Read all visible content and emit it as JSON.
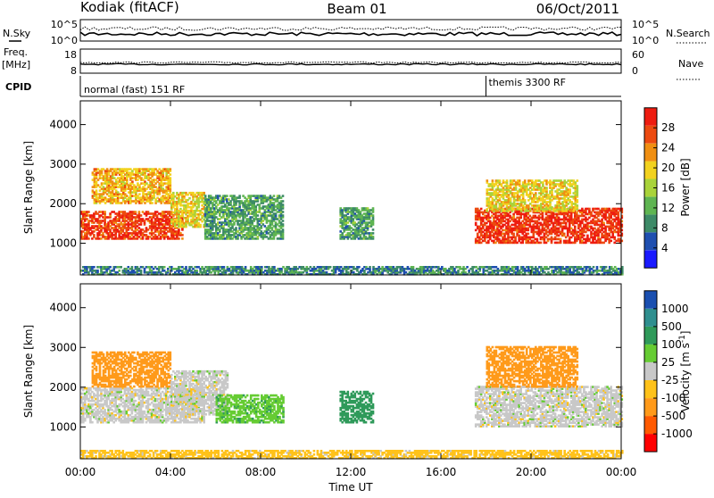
{
  "header": {
    "station": "Kodiak (fitACF)",
    "beam": "Beam 01",
    "date": "06/Oct/2011"
  },
  "strips": {
    "nsky_label": "N.Sky",
    "nsearch_label": "N.Search",
    "noise_ticks": [
      "10^5",
      "10^0"
    ],
    "freq_label": "Freq.",
    "freq_unit": "[MHz]",
    "freq_ticks": [
      "18",
      "8"
    ],
    "nave_label": "Nave",
    "nave_ticks": [
      "60",
      "0"
    ],
    "cpid_label": "CPID",
    "cpid_modes": [
      {
        "label": "normal (fast) 151 RF",
        "start_hour": 0
      },
      {
        "label": "themis 3300 RF",
        "start_hour": 18.0
      }
    ]
  },
  "axes": {
    "xlabel": "Time UT",
    "x_ticks": [
      "00:00",
      "04:00",
      "08:00",
      "12:00",
      "16:00",
      "20:00",
      "00:00"
    ],
    "xlim_hours": [
      0,
      24
    ],
    "ylabel": "Slant Range [km]",
    "y_ticks": [
      "1000",
      "2000",
      "3000",
      "4000"
    ],
    "ylim_km": [
      200,
      4600
    ]
  },
  "colors": {
    "power_scale": [
      "#1a1aff",
      "#1f4fb0",
      "#3d8a67",
      "#5fb552",
      "#a9d33a",
      "#f2d21f",
      "#f08f12",
      "#ec4a10",
      "#ee1c10"
    ],
    "velocity_scale": [
      "#ff0000",
      "#ff5a00",
      "#ff9a1a",
      "#ffc21a",
      "#c8c8c8",
      "#66cc33",
      "#2f9a5a",
      "#2f8f8f",
      "#1a4fb0"
    ]
  },
  "chart_data": [
    {
      "type": "heatmap",
      "title": "",
      "quantity": "Power",
      "colorbar_label": "Power [dB]",
      "colorbar_ticks": [
        "4",
        "8",
        "12",
        "16",
        "20",
        "24",
        "28"
      ],
      "clim": [
        0,
        30
      ],
      "xlabel": "Time UT",
      "ylabel": "Slant Range [km]",
      "xlim_hours": [
        0,
        24
      ],
      "ylim_km": [
        200,
        4600
      ],
      "regions": [
        {
          "t_start": 0.0,
          "t_end": 4.5,
          "r_low": 1100,
          "r_high": 1800,
          "value_db": 26
        },
        {
          "t_start": 0.5,
          "t_end": 4.0,
          "r_low": 2000,
          "r_high": 2900,
          "value_db": 20
        },
        {
          "t_start": 4.0,
          "t_end": 5.5,
          "r_low": 1400,
          "r_high": 2300,
          "value_db": 18
        },
        {
          "t_start": 5.5,
          "t_end": 9.0,
          "r_low": 1100,
          "r_high": 2200,
          "value_db": 10
        },
        {
          "t_start": 11.5,
          "t_end": 13.0,
          "r_low": 1100,
          "r_high": 1900,
          "value_db": 10
        },
        {
          "t_start": 17.5,
          "t_end": 24.0,
          "r_low": 1000,
          "r_high": 1900,
          "value_db": 27
        },
        {
          "t_start": 18.0,
          "t_end": 22.0,
          "r_low": 1800,
          "r_high": 2600,
          "value_db": 18
        },
        {
          "t_start": 0.0,
          "t_end": 24.0,
          "r_low": 200,
          "r_high": 400,
          "value_db": 8
        }
      ]
    },
    {
      "type": "heatmap",
      "title": "",
      "quantity": "Velocity",
      "colorbar_label": "Velocity [m s^-1]",
      "colorbar_ticks": [
        "-1000",
        "-500",
        "-100",
        "-25",
        "25",
        "100",
        "500",
        "1000"
      ],
      "clim": [
        -1000,
        1000
      ],
      "xlabel": "Time UT",
      "ylabel": "Slant Range [km]",
      "xlim_hours": [
        0,
        24
      ],
      "ylim_km": [
        200,
        4600
      ],
      "regions": [
        {
          "t_start": 0.0,
          "t_end": 5.5,
          "r_low": 1100,
          "r_high": 2000,
          "value_ms": 0
        },
        {
          "t_start": 0.5,
          "t_end": 4.0,
          "r_low": 2000,
          "r_high": 2900,
          "value_ms": -150
        },
        {
          "t_start": 4.0,
          "t_end": 6.5,
          "r_low": 1300,
          "r_high": 2400,
          "value_ms": 0
        },
        {
          "t_start": 6.0,
          "t_end": 9.0,
          "r_low": 1100,
          "r_high": 1800,
          "value_ms": 80
        },
        {
          "t_start": 11.5,
          "t_end": 13.0,
          "r_low": 1100,
          "r_high": 1900,
          "value_ms": 300
        },
        {
          "t_start": 17.5,
          "t_end": 24.0,
          "r_low": 1000,
          "r_high": 2000,
          "value_ms": 0
        },
        {
          "t_start": 18.0,
          "t_end": 22.0,
          "r_low": 2000,
          "r_high": 3000,
          "value_ms": -300
        },
        {
          "t_start": 0.0,
          "t_end": 24.0,
          "r_low": 200,
          "r_high": 400,
          "value_ms": -50
        }
      ]
    }
  ]
}
